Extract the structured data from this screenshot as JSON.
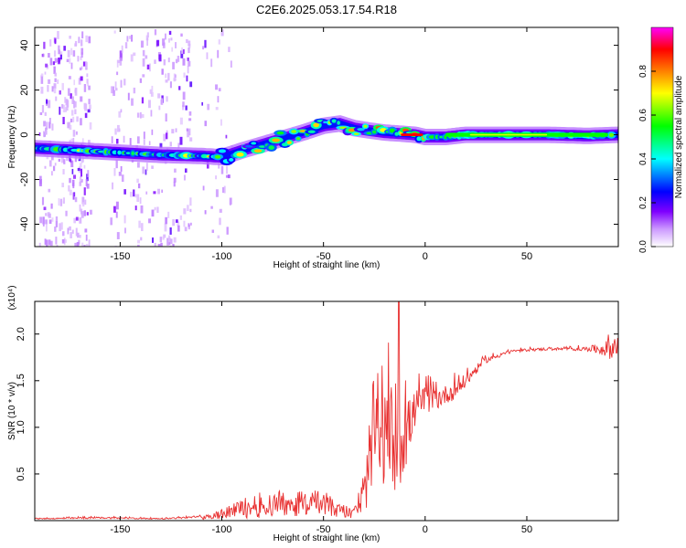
{
  "figure_title": "C2E6.2025.053.17.54.R18",
  "chart_data": [
    {
      "type": "heatmap",
      "panel": "spectrogram",
      "title": "C2E6.2025.053.17.54.R18",
      "xlabel": "Height of straight line (km)",
      "ylabel": "Frequency (Hz)",
      "xlim": [
        -192,
        95
      ],
      "ylim": [
        -50,
        48
      ],
      "x_ticks": [
        -150,
        -100,
        -50,
        0,
        50
      ],
      "x_tick_labels": [
        "-150",
        "-100",
        "-50",
        "0",
        "50"
      ],
      "y_ticks": [
        -40,
        -20,
        0,
        20,
        40
      ],
      "y_tick_labels": [
        "-40",
        "-20",
        "0",
        "20",
        "40"
      ],
      "ridge": {
        "x": [
          -192,
          -170,
          -150,
          -130,
          -110,
          -100,
          -90,
          -75,
          -60,
          -50,
          -42,
          -35,
          -28,
          -20,
          -12,
          -5,
          0,
          10,
          20,
          40,
          60,
          80,
          95
        ],
        "y": [
          -6,
          -7,
          -8,
          -9,
          -9.5,
          -10,
          -7,
          -3,
          1,
          4,
          5,
          3,
          2,
          1,
          0.5,
          0,
          -1,
          -1,
          0,
          0,
          0,
          -0.5,
          0
        ]
      },
      "colorbar": {
        "label": "Normalized spectral amplitude",
        "range": [
          0,
          1
        ],
        "ticks": [
          0.0,
          0.2,
          0.4,
          0.6,
          0.8
        ],
        "tick_labels": [
          "0.0",
          "0.2",
          "0.4",
          "0.6",
          "0.8"
        ],
        "colors": [
          "#ffffff",
          "#cc99ff",
          "#7f00ff",
          "#0000ff",
          "#00ffff",
          "#00ff00",
          "#ffff00",
          "#ff8000",
          "#ff0000",
          "#ff00ff"
        ]
      }
    },
    {
      "type": "line",
      "panel": "snr",
      "xlabel": "Height of straight line (km)",
      "ylabel": "SNR (10 * v/v)",
      "multiplier": "(x10⁴)",
      "xlim": [
        -192,
        95
      ],
      "ylim": [
        0,
        2.35
      ],
      "x_ticks": [
        -150,
        -100,
        -50,
        0,
        50
      ],
      "x_tick_labels": [
        "-150",
        "-100",
        "-50",
        "0",
        "50"
      ],
      "y_ticks": [
        0.5,
        1.0,
        1.5,
        2.0
      ],
      "y_tick_labels": [
        "0.5",
        "1.0",
        "1.5",
        "2.0"
      ],
      "color": "#e83030",
      "envelope_x": [
        -192,
        -160,
        -130,
        -110,
        -100,
        -90,
        -80,
        -70,
        -60,
        -50,
        -42,
        -35,
        -30,
        -27,
        -25,
        -22,
        -19,
        -16,
        -13,
        -11,
        -8,
        -5,
        0,
        5,
        10,
        15,
        20,
        25,
        30,
        40,
        50,
        60,
        70,
        80,
        88,
        95
      ],
      "envelope_base": [
        0.02,
        0.03,
        0.02,
        0.04,
        0.06,
        0.08,
        0.1,
        0.12,
        0.14,
        0.13,
        0.1,
        0.08,
        0.3,
        0.6,
        0.75,
        0.8,
        0.9,
        0.9,
        0.95,
        0.95,
        1.0,
        1.2,
        1.3,
        1.3,
        1.35,
        1.4,
        1.5,
        1.62,
        1.72,
        1.8,
        1.83,
        1.84,
        1.84,
        1.84,
        1.84,
        1.84
      ],
      "envelope_amp": [
        0.01,
        0.02,
        0.01,
        0.03,
        0.1,
        0.22,
        0.28,
        0.3,
        0.3,
        0.28,
        0.18,
        0.1,
        0.5,
        0.7,
        0.8,
        0.9,
        1.0,
        1.15,
        1.25,
        1.1,
        0.6,
        0.4,
        0.3,
        0.25,
        0.2,
        0.2,
        0.15,
        0.1,
        0.06,
        0.04,
        0.03,
        0.03,
        0.03,
        0.05,
        0.15,
        0.3
      ],
      "peak": {
        "x": -13,
        "y": 2.35
      }
    }
  ]
}
